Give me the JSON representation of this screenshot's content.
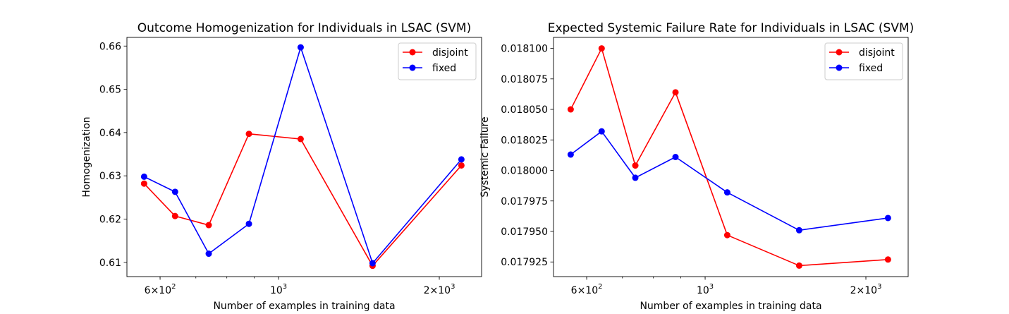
{
  "chart_data": [
    {
      "type": "line",
      "title": "Outcome Homogenization for Individuals in LSAC (SVM)",
      "xlabel": "Number of examples in training data",
      "ylabel": "Homogenization",
      "xscale": "log",
      "xlim": [
        520,
        2400
      ],
      "ylim": [
        0.6067,
        0.662
      ],
      "x": [
        560,
        640,
        740,
        880,
        1100,
        1500,
        2200
      ],
      "x_ticks": [
        {
          "value": 600,
          "base": "6",
          "mid": "×10",
          "exp": "2"
        },
        {
          "value": 1000,
          "base": "",
          "mid": "10",
          "exp": "3"
        },
        {
          "value": 2000,
          "base": "2",
          "mid": "×10",
          "exp": "3"
        }
      ],
      "y_ticks": [
        {
          "value": 0.61,
          "label": "0.61"
        },
        {
          "value": 0.62,
          "label": "0.62"
        },
        {
          "value": 0.63,
          "label": "0.63"
        },
        {
          "value": 0.64,
          "label": "0.64"
        },
        {
          "value": 0.65,
          "label": "0.65"
        },
        {
          "value": 0.66,
          "label": "0.66"
        }
      ],
      "series": [
        {
          "name": "disjoint",
          "color": "#ff0000",
          "values": [
            0.6282,
            0.6207,
            0.6186,
            0.6397,
            0.6385,
            0.6092,
            0.6324
          ]
        },
        {
          "name": "fixed",
          "color": "#0000ff",
          "values": [
            0.6298,
            0.6263,
            0.612,
            0.6189,
            0.6597,
            0.6098,
            0.6338
          ]
        }
      ],
      "legend": "top-right",
      "grid": false
    },
    {
      "type": "line",
      "title": "Expected Systemic Failure Rate for Individuals in LSAC (SVM)",
      "xlabel": "Number of examples in training data",
      "ylabel": "Systemic Failure",
      "xscale": "log",
      "xlim": [
        520,
        2400
      ],
      "ylim": [
        0.017913,
        0.018109
      ],
      "x": [
        560,
        640,
        740,
        880,
        1100,
        1500,
        2200
      ],
      "x_ticks": [
        {
          "value": 600,
          "base": "6",
          "mid": "×10",
          "exp": "2"
        },
        {
          "value": 1000,
          "base": "",
          "mid": "10",
          "exp": "3"
        },
        {
          "value": 2000,
          "base": "2",
          "mid": "×10",
          "exp": "3"
        }
      ],
      "y_ticks": [
        {
          "value": 0.017925,
          "label": "0.017925"
        },
        {
          "value": 0.01795,
          "label": "0.017950"
        },
        {
          "value": 0.017975,
          "label": "0.017975"
        },
        {
          "value": 0.018,
          "label": "0.018000"
        },
        {
          "value": 0.018025,
          "label": "0.018025"
        },
        {
          "value": 0.01805,
          "label": "0.018050"
        },
        {
          "value": 0.018075,
          "label": "0.018075"
        },
        {
          "value": 0.0181,
          "label": "0.018100"
        }
      ],
      "series": [
        {
          "name": "disjoint",
          "color": "#ff0000",
          "values": [
            0.01805,
            0.0181,
            0.018004,
            0.018064,
            0.017947,
            0.017922,
            0.017927
          ]
        },
        {
          "name": "fixed",
          "color": "#0000ff",
          "values": [
            0.018013,
            0.018032,
            0.017994,
            0.018011,
            0.017982,
            0.017951,
            0.017961
          ]
        }
      ],
      "legend": "top-right",
      "grid": false
    }
  ]
}
